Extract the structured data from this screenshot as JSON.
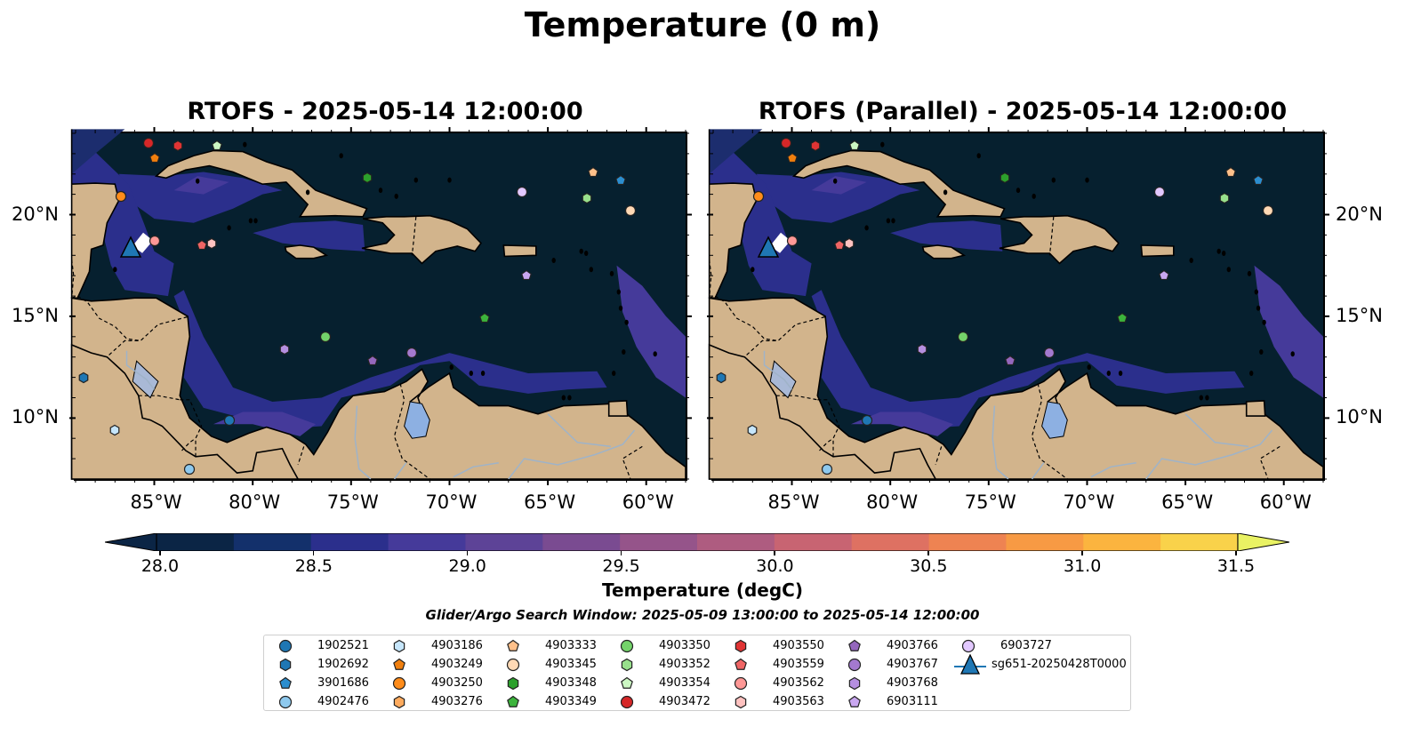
{
  "title": "Temperature (0 m)",
  "panels": [
    {
      "title": "RTOFS - 2025-05-14 12:00:00"
    },
    {
      "title": "RTOFS (Parallel) - 2025-05-14 12:00:00"
    }
  ],
  "lat_ticks": [
    "20°N",
    "15°N",
    "10°N"
  ],
  "lon_ticks": [
    "85°W",
    "80°W",
    "75°W",
    "70°W",
    "65°W",
    "60°W"
  ],
  "colorbar": {
    "label": "Temperature (degC)",
    "ticks": [
      "28.0",
      "28.5",
      "29.0",
      "29.5",
      "30.0",
      "30.5",
      "31.0",
      "31.5"
    ],
    "range": [
      28.0,
      31.5
    ],
    "colors": [
      "#0b2545",
      "#13306b",
      "#2b2f8c",
      "#453a9a",
      "#5d4397",
      "#7a4b91",
      "#95548a",
      "#ae5c80",
      "#c86472",
      "#de7162",
      "#ee8352",
      "#f79a44",
      "#fbb43f",
      "#f9d24a",
      "#e9f263"
    ]
  },
  "search_window": "Glider/Argo Search Window: 2025-05-09 13:00:00 to 2025-05-14 12:00:00",
  "legend": [
    {
      "label": "1902521",
      "shape": "circle",
      "color": "#1f77b4"
    },
    {
      "label": "1902692",
      "shape": "hexagon",
      "color": "#1f77b4"
    },
    {
      "label": "3901686",
      "shape": "pentagon",
      "color": "#2c8ecf"
    },
    {
      "label": "4902476",
      "shape": "circle",
      "color": "#8ec9ee"
    },
    {
      "label": "4903186",
      "shape": "hexagon",
      "color": "#c6e6fb"
    },
    {
      "label": "4903249",
      "shape": "pentagon",
      "color": "#f07f0e"
    },
    {
      "label": "4903250",
      "shape": "circle",
      "color": "#ff8c1a"
    },
    {
      "label": "4903276",
      "shape": "hexagon",
      "color": "#ffab5e"
    },
    {
      "label": "4903333",
      "shape": "pentagon",
      "color": "#ffc08a"
    },
    {
      "label": "4903345",
      "shape": "circle",
      "color": "#ffd9b5"
    },
    {
      "label": "4903348",
      "shape": "hexagon",
      "color": "#2ca02c"
    },
    {
      "label": "4903349",
      "shape": "pentagon",
      "color": "#3cb43c"
    },
    {
      "label": "4903350",
      "shape": "circle",
      "color": "#74d36a"
    },
    {
      "label": "4903352",
      "shape": "hexagon",
      "color": "#98e08c"
    },
    {
      "label": "4903354",
      "shape": "pentagon",
      "color": "#ccf7c3"
    },
    {
      "label": "4903472",
      "shape": "circle",
      "color": "#d62728"
    },
    {
      "label": "4903550",
      "shape": "hexagon",
      "color": "#e03434"
    },
    {
      "label": "4903559",
      "shape": "pentagon",
      "color": "#f06565"
    },
    {
      "label": "4903562",
      "shape": "circle",
      "color": "#ff9896"
    },
    {
      "label": "4903563",
      "shape": "hexagon",
      "color": "#ffc2c0"
    },
    {
      "label": "4903766",
      "shape": "pentagon",
      "color": "#9467bd"
    },
    {
      "label": "4903767",
      "shape": "circle",
      "color": "#a479cf"
    },
    {
      "label": "4903768",
      "shape": "hexagon",
      "color": "#b58fe0"
    },
    {
      "label": "6903111",
      "shape": "pentagon",
      "color": "#c9a7f0"
    },
    {
      "label": "6903727",
      "shape": "circle",
      "color": "#e2c8ff"
    },
    {
      "label": "sg651-20250428T0000",
      "shape": "glider",
      "color": "#1f77b4"
    }
  ],
  "platform_positions": [
    {
      "id": "1902521",
      "lon": -81.2,
      "lat": 9.9
    },
    {
      "id": "1902692",
      "lon": -88.6,
      "lat": 12.0
    },
    {
      "id": "3901686",
      "lon": -61.3,
      "lat": 21.7
    },
    {
      "id": "4902476",
      "lon": -83.2,
      "lat": 7.5
    },
    {
      "id": "4903186",
      "lon": -87.0,
      "lat": 9.4
    },
    {
      "id": "4903249",
      "lon": -85.0,
      "lat": 22.8
    },
    {
      "id": "4903250",
      "lon": -86.7,
      "lat": 20.9
    },
    {
      "id": "4903276",
      "lon": -82.1,
      "lat": 18.6
    },
    {
      "id": "4903333",
      "lon": -62.7,
      "lat": 22.1
    },
    {
      "id": "4903345",
      "lon": -60.8,
      "lat": 20.2
    },
    {
      "id": "4903348",
      "lon": -74.2,
      "lat": 21.8
    },
    {
      "id": "4903349",
      "lon": -68.2,
      "lat": 14.9
    },
    {
      "id": "4903350",
      "lon": -76.3,
      "lat": 14.0
    },
    {
      "id": "4903352",
      "lon": -63.0,
      "lat": 20.8
    },
    {
      "id": "4903354",
      "lon": -81.8,
      "lat": 23.4
    },
    {
      "id": "4903472",
      "lon": -85.3,
      "lat": 23.5
    },
    {
      "id": "4903550",
      "lon": -83.8,
      "lat": 23.4
    },
    {
      "id": "4903559",
      "lon": -82.6,
      "lat": 18.5
    },
    {
      "id": "4903562",
      "lon": -85.0,
      "lat": 18.7
    },
    {
      "id": "4903563",
      "lon": -82.1,
      "lat": 18.6
    },
    {
      "id": "4903766",
      "lon": -73.9,
      "lat": 12.8
    },
    {
      "id": "4903767",
      "lon": -71.9,
      "lat": 13.2
    },
    {
      "id": "4903768",
      "lon": -78.4,
      "lat": 13.4
    },
    {
      "id": "6903111",
      "lon": -66.1,
      "lat": 17.0
    },
    {
      "id": "6903727",
      "lon": -66.3,
      "lat": 21.1
    },
    {
      "id": "sg651-20250428T0000",
      "lon": -86.2,
      "lat": 18.2
    }
  ],
  "map_extent": {
    "lon": [
      -89,
      -58
    ],
    "lat": [
      7,
      24
    ]
  },
  "land_color": "#d2b48c",
  "ocean_base_color": "#06202f"
}
